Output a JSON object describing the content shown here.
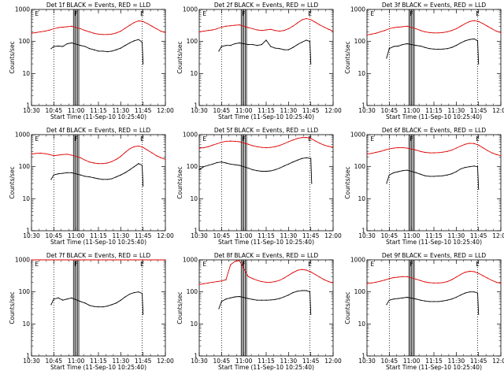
{
  "chart_data": {
    "type": "line",
    "common": {
      "xlabel": "Start Time (11-Sep-10 10:25:40)",
      "ylabel": "Counts/sec",
      "x_ticks": [
        "10:30",
        "10:45",
        "11:00",
        "11:15",
        "11:30",
        "11:45",
        "12:00"
      ],
      "x_tick_minutes": [
        10.5,
        10.75,
        11.0,
        11.25,
        11.5,
        11.75,
        12.0
      ],
      "xlim": [
        10.5,
        12.0
      ],
      "y_scale": "log",
      "y_ticks": [
        "1",
        "10",
        "100",
        "1000"
      ],
      "y_tick_values": [
        1,
        10,
        100,
        1000
      ],
      "ylim": [
        1,
        1000
      ],
      "marker_labels": [
        "E",
        "F",
        "E"
      ],
      "marker_hours": [
        10.56,
        11.0,
        11.74
      ],
      "dotted_hours": [
        10.75,
        11.74
      ],
      "bar_hours": [
        10.97,
        10.985,
        11.0,
        11.015,
        11.03
      ],
      "series_colors": {
        "events": "#000000",
        "lld": "#dd0000"
      }
    },
    "panels": [
      {
        "title": "Det 1f BLACK = Events, RED = LLD",
        "events": {
          "x": [
            10.72,
            10.75,
            10.8,
            10.85,
            10.9,
            10.95,
            11.05,
            11.1,
            11.15,
            11.2,
            11.25,
            11.3,
            11.35,
            11.4,
            11.45,
            11.5,
            11.55,
            11.6,
            11.65,
            11.7,
            11.74,
            11.75
          ],
          "y": [
            60,
            70,
            72,
            70,
            85,
            90,
            75,
            70,
            60,
            55,
            50,
            50,
            48,
            50,
            55,
            62,
            75,
            90,
            105,
            115,
            95,
            20
          ]
        },
        "lld": {
          "x": [
            10.5,
            10.55,
            10.6,
            10.65,
            10.7,
            10.75,
            10.8,
            10.85,
            10.9,
            10.95,
            11.05,
            11.1,
            11.15,
            11.2,
            11.25,
            11.3,
            11.35,
            11.4,
            11.45,
            11.5,
            11.55,
            11.6,
            11.65,
            11.7,
            11.75,
            11.8,
            11.85,
            11.9,
            11.95,
            12.0
          ],
          "y": [
            180,
            190,
            200,
            210,
            225,
            250,
            270,
            280,
            290,
            300,
            250,
            220,
            200,
            180,
            170,
            165,
            165,
            170,
            185,
            210,
            260,
            320,
            390,
            440,
            420,
            360,
            300,
            250,
            210,
            190
          ]
        }
      },
      {
        "title": "Det 2f BLACK = Events, RED = LLD",
        "events": {
          "x": [
            10.72,
            10.75,
            10.8,
            10.85,
            10.9,
            10.95,
            11.05,
            11.1,
            11.15,
            11.2,
            11.25,
            11.3,
            11.35,
            11.4,
            11.45,
            11.5,
            11.55,
            11.6,
            11.65,
            11.7,
            11.74,
            11.75
          ],
          "y": [
            50,
            70,
            75,
            75,
            85,
            90,
            80,
            80,
            75,
            80,
            110,
            70,
            62,
            60,
            55,
            55,
            65,
            80,
            95,
            110,
            100,
            20
          ]
        },
        "lld": {
          "x": [
            10.5,
            10.55,
            10.6,
            10.65,
            10.7,
            10.75,
            10.8,
            10.85,
            10.9,
            10.95,
            11.05,
            11.1,
            11.15,
            11.2,
            11.25,
            11.3,
            11.35,
            11.4,
            11.45,
            11.5,
            11.55,
            11.6,
            11.65,
            11.7,
            11.75,
            11.8,
            11.85,
            11.9,
            11.95,
            12.0
          ],
          "y": [
            200,
            210,
            220,
            230,
            250,
            280,
            300,
            310,
            320,
            330,
            270,
            250,
            230,
            220,
            230,
            240,
            220,
            210,
            220,
            250,
            300,
            380,
            470,
            520,
            480,
            400,
            330,
            280,
            240,
            210
          ]
        }
      },
      {
        "title": "Det 3f BLACK = Events, RED = LLD",
        "events": {
          "x": [
            10.72,
            10.75,
            10.8,
            10.85,
            10.9,
            10.95,
            11.05,
            11.1,
            11.15,
            11.2,
            11.25,
            11.3,
            11.35,
            11.4,
            11.45,
            11.5,
            11.55,
            11.6,
            11.65,
            11.7,
            11.74,
            11.75
          ],
          "y": [
            30,
            60,
            70,
            72,
            80,
            85,
            75,
            72,
            65,
            60,
            58,
            57,
            58,
            60,
            65,
            75,
            90,
            105,
            115,
            120,
            105,
            20
          ]
        },
        "lld": {
          "x": [
            10.5,
            10.55,
            10.6,
            10.65,
            10.7,
            10.75,
            10.8,
            10.85,
            10.9,
            10.95,
            11.05,
            11.1,
            11.15,
            11.2,
            11.25,
            11.3,
            11.35,
            11.4,
            11.45,
            11.5,
            11.55,
            11.6,
            11.65,
            11.7,
            11.75,
            11.8,
            11.85,
            11.9,
            11.95,
            12.0
          ],
          "y": [
            160,
            170,
            180,
            200,
            220,
            250,
            270,
            280,
            290,
            300,
            250,
            220,
            200,
            190,
            185,
            185,
            190,
            200,
            220,
            250,
            300,
            360,
            420,
            450,
            420,
            360,
            300,
            250,
            210,
            190
          ]
        }
      },
      {
        "title": "Det 4f BLACK = Events, RED = LLD",
        "events": {
          "x": [
            10.72,
            10.75,
            10.8,
            10.85,
            10.9,
            10.95,
            11.05,
            11.1,
            11.15,
            11.2,
            11.25,
            11.3,
            11.35,
            11.4,
            11.45,
            11.5,
            11.55,
            11.6,
            11.65,
            11.7,
            11.74,
            11.75
          ],
          "y": [
            40,
            55,
            60,
            62,
            65,
            65,
            55,
            50,
            48,
            45,
            42,
            40,
            40,
            42,
            48,
            55,
            65,
            80,
            100,
            125,
            110,
            25
          ]
        },
        "lld": {
          "x": [
            10.5,
            10.55,
            10.6,
            10.65,
            10.7,
            10.75,
            10.8,
            10.85,
            10.9,
            10.95,
            11.05,
            11.1,
            11.15,
            11.2,
            11.25,
            11.3,
            11.35,
            11.4,
            11.45,
            11.5,
            11.55,
            11.6,
            11.65,
            11.7,
            11.75,
            11.8,
            11.85,
            11.9,
            11.95,
            12.0
          ],
          "y": [
            250,
            260,
            265,
            255,
            240,
            220,
            230,
            240,
            245,
            230,
            190,
            160,
            140,
            130,
            125,
            125,
            130,
            145,
            170,
            210,
            280,
            360,
            420,
            440,
            400,
            330,
            270,
            220,
            190,
            170
          ]
        }
      },
      {
        "title": "Det 5f BLACK = Events, RED = LLD",
        "events": {
          "x": [
            10.5,
            10.55,
            10.6,
            10.65,
            10.7,
            10.75,
            10.8,
            10.85,
            10.9,
            10.95,
            11.05,
            11.1,
            11.15,
            11.2,
            11.25,
            11.3,
            11.35,
            11.4,
            11.45,
            11.5,
            11.55,
            11.6,
            11.65,
            11.7,
            11.75,
            11.76
          ],
          "y": [
            80,
            100,
            110,
            120,
            135,
            140,
            130,
            120,
            115,
            110,
            90,
            80,
            75,
            72,
            72,
            74,
            80,
            90,
            105,
            120,
            140,
            160,
            180,
            190,
            180,
            30
          ]
        },
        "lld": {
          "x": [
            10.5,
            10.55,
            10.6,
            10.65,
            10.7,
            10.75,
            10.8,
            10.85,
            10.9,
            10.95,
            11.05,
            11.1,
            11.15,
            11.2,
            11.25,
            11.3,
            11.35,
            11.4,
            11.45,
            11.5,
            11.55,
            11.6,
            11.65,
            11.7,
            11.75,
            11.8,
            11.85,
            11.9,
            11.95,
            12.0
          ],
          "y": [
            380,
            390,
            420,
            470,
            520,
            580,
            620,
            630,
            620,
            600,
            500,
            450,
            420,
            400,
            390,
            400,
            420,
            460,
            520,
            600,
            680,
            760,
            810,
            820,
            760,
            640,
            540,
            470,
            430,
            410
          ]
        }
      },
      {
        "title": "Det 6f BLACK = Events, RED = LLD",
        "events": {
          "x": [
            10.72,
            10.75,
            10.8,
            10.85,
            10.9,
            10.95,
            11.05,
            11.1,
            11.15,
            11.2,
            11.25,
            11.3,
            11.35,
            11.4,
            11.45,
            11.5,
            11.55,
            11.6,
            11.65,
            11.7,
            11.74,
            11.75
          ],
          "y": [
            30,
            55,
            65,
            70,
            75,
            78,
            65,
            58,
            52,
            50,
            50,
            51,
            52,
            55,
            60,
            70,
            85,
            95,
            100,
            105,
            100,
            20
          ]
        },
        "lld": {
          "x": [
            10.5,
            10.55,
            10.6,
            10.65,
            10.7,
            10.75,
            10.8,
            10.85,
            10.9,
            10.95,
            11.05,
            11.1,
            11.15,
            11.2,
            11.25,
            11.3,
            11.35,
            11.4,
            11.45,
            11.5,
            11.55,
            11.6,
            11.65,
            11.7,
            11.75,
            11.8,
            11.85,
            11.9,
            11.95,
            12.0
          ],
          "y": [
            250,
            260,
            280,
            300,
            330,
            360,
            380,
            390,
            390,
            380,
            330,
            300,
            280,
            270,
            270,
            275,
            285,
            300,
            330,
            380,
            440,
            500,
            540,
            530,
            470,
            390,
            320,
            270,
            240,
            220
          ]
        }
      },
      {
        "title": "Det 7f BLACK = Events, RED = LLD",
        "events": {
          "x": [
            10.72,
            10.75,
            10.8,
            10.85,
            10.9,
            10.95,
            11.05,
            11.1,
            11.15,
            11.2,
            11.25,
            11.3,
            11.35,
            11.4,
            11.45,
            11.5,
            11.55,
            11.6,
            11.65,
            11.7,
            11.74,
            11.75
          ],
          "y": [
            40,
            60,
            65,
            55,
            60,
            65,
            50,
            45,
            38,
            35,
            34,
            34,
            36,
            40,
            45,
            55,
            70,
            85,
            95,
            100,
            90,
            20
          ]
        },
        "lld": {
          "x": [
            10.5,
            10.55,
            10.6,
            10.65,
            10.7,
            10.75,
            10.8,
            10.85,
            10.9,
            10.95,
            11.05,
            11.1,
            11.15,
            11.2,
            11.25,
            11.3,
            11.35,
            11.4,
            11.45,
            11.5,
            11.55,
            11.6,
            11.65,
            11.7,
            11.75,
            11.8,
            11.85,
            11.9,
            11.95,
            12.0
          ],
          "y": [
            1000,
            1000,
            1000,
            1000,
            1000,
            1000,
            1000,
            1000,
            1000,
            1000,
            1000,
            1000,
            1000,
            1000,
            1000,
            1000,
            1000,
            1000,
            1000,
            1000,
            1000,
            1000,
            1000,
            1000,
            1000,
            1000,
            1000,
            1000,
            1000,
            1000
          ]
        }
      },
      {
        "title": "Det 8f BLACK = Events, RED = LLD",
        "events": {
          "x": [
            10.72,
            10.75,
            10.8,
            10.85,
            10.9,
            10.95,
            11.05,
            11.1,
            11.15,
            11.2,
            11.25,
            11.3,
            11.35,
            11.4,
            11.45,
            11.5,
            11.55,
            11.6,
            11.65,
            11.7,
            11.74,
            11.75
          ],
          "y": [
            30,
            50,
            60,
            65,
            70,
            72,
            62,
            58,
            55,
            55,
            55,
            56,
            58,
            62,
            70,
            80,
            95,
            105,
            110,
            110,
            100,
            20
          ]
        },
        "lld": {
          "x": [
            10.5,
            10.55,
            10.6,
            10.65,
            10.7,
            10.75,
            10.8,
            10.85,
            10.9,
            10.95,
            11.05,
            11.1,
            11.15,
            11.2,
            11.25,
            11.3,
            11.35,
            11.4,
            11.45,
            11.5,
            11.55,
            11.6,
            11.65,
            11.7,
            11.75,
            11.8,
            11.85,
            11.9,
            11.95,
            12.0
          ],
          "y": [
            170,
            180,
            190,
            200,
            210,
            220,
            240,
            700,
            900,
            950,
            300,
            260,
            230,
            210,
            200,
            200,
            210,
            230,
            270,
            330,
            400,
            470,
            500,
            480,
            420,
            350,
            290,
            240,
            210,
            190
          ]
        }
      },
      {
        "title": "Det 9f BLACK = Events, RED = LLD",
        "events": {
          "x": [
            10.72,
            10.75,
            10.8,
            10.85,
            10.9,
            10.95,
            11.05,
            11.1,
            11.15,
            11.2,
            11.25,
            11.3,
            11.35,
            11.4,
            11.45,
            11.5,
            11.55,
            11.6,
            11.65,
            11.7,
            11.74,
            11.75
          ],
          "y": [
            40,
            55,
            60,
            62,
            65,
            68,
            60,
            55,
            52,
            50,
            50,
            50,
            52,
            55,
            60,
            68,
            80,
            92,
            100,
            100,
            92,
            20
          ]
        },
        "lld": {
          "x": [
            10.5,
            10.55,
            10.6,
            10.65,
            10.7,
            10.75,
            10.8,
            10.85,
            10.9,
            10.95,
            11.05,
            11.1,
            11.15,
            11.2,
            11.25,
            11.3,
            11.35,
            11.4,
            11.45,
            11.5,
            11.55,
            11.6,
            11.65,
            11.7,
            11.75,
            11.8,
            11.85,
            11.9,
            11.95,
            12.0
          ],
          "y": [
            180,
            190,
            200,
            215,
            235,
            260,
            280,
            290,
            300,
            300,
            250,
            225,
            205,
            195,
            190,
            190,
            195,
            210,
            240,
            290,
            350,
            410,
            440,
            430,
            380,
            320,
            270,
            230,
            200,
            185
          ]
        }
      }
    ]
  }
}
